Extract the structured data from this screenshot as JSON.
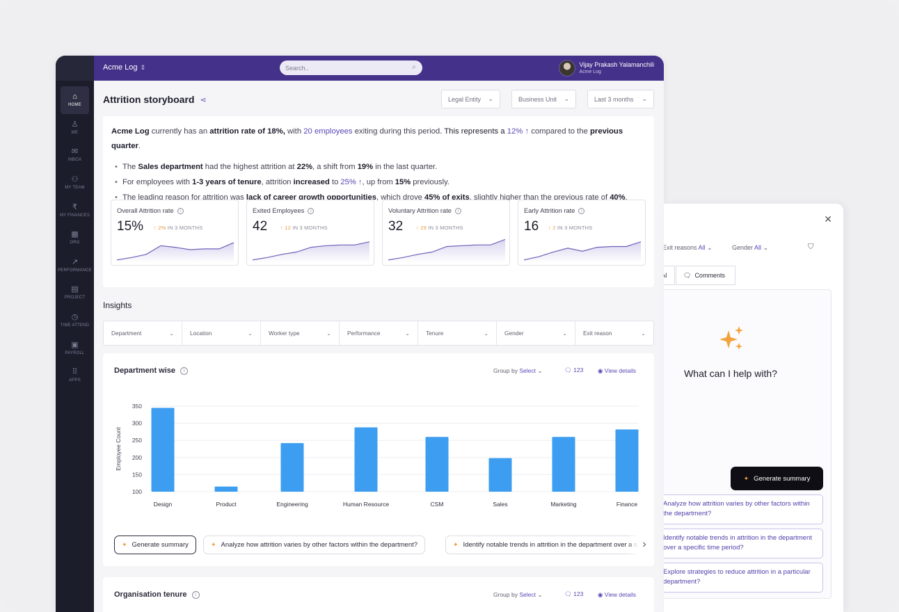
{
  "org": {
    "name": "Acme Log"
  },
  "search": {
    "placeholder": "Search.."
  },
  "user": {
    "name": "Vijay Prakash Yalamanchili",
    "org": "Acme Log"
  },
  "sidebar": {
    "items": [
      {
        "label": "HOME",
        "icon": "home-icon",
        "active": true
      },
      {
        "label": "ME",
        "icon": "user-icon"
      },
      {
        "label": "INBOX",
        "icon": "inbox-icon"
      },
      {
        "label": "MY TEAM",
        "icon": "team-icon"
      },
      {
        "label": "MY FINANCES",
        "icon": "rupee-icon"
      },
      {
        "label": "ORG",
        "icon": "org-icon"
      },
      {
        "label": "PERFORMANCE",
        "icon": "trend-icon"
      },
      {
        "label": "PROJECT",
        "icon": "clipboard-icon"
      },
      {
        "label": "TIME ATTEND",
        "icon": "clock-icon"
      },
      {
        "label": "PAYROLL",
        "icon": "payroll-icon"
      },
      {
        "label": "APPS",
        "icon": "apps-icon"
      }
    ]
  },
  "page": {
    "title": "Attrition storyboard"
  },
  "dropdowns": {
    "legal_entity": "Legal Entity",
    "business_unit": "Business Unit",
    "period": "Last 3 months"
  },
  "summary": {
    "p1": {
      "org": "Acme Log",
      "t1": " currently has an ",
      "rate": "attrition rate of 18%,",
      "t2": " with ",
      "exits": "20 employees",
      "t3": " exiting during this period",
      "t4": ". This represents a ",
      "change": "12% ↑",
      "t5": " compared to the ",
      "prev": "previous quarter",
      "t6": "."
    },
    "b1": {
      "t1": "The ",
      "dept": "Sales department",
      "t2": " had the highest attrition at ",
      "v1": "22%",
      "t3": ", a shift from ",
      "v2": "19%",
      "t4": " in the last quarter."
    },
    "b2": {
      "t1": "For employees with ",
      "tenure": "1-3 years of tenure",
      "t2": ", attrition ",
      "inc": "increased",
      "t3": " to ",
      "v1": "25% ↑",
      "t4": ", up from ",
      "v2": "15%",
      "t5": " previously."
    },
    "b3": {
      "t1": "The leading reason for attrition was ",
      "reason": "lack of career growth opportunities",
      "t2": ", which drove ",
      "v1": "45% of exits",
      "t3": ", slightly higher than the previous rate of ",
      "v2": "40%",
      "t4": "."
    }
  },
  "kpis": [
    {
      "title": "Overall Attrition rate",
      "value": "15%",
      "delta": "↑ 2%",
      "period": "IN 3 MONTHS",
      "trend": [
        2,
        5,
        9,
        20,
        18,
        15,
        16,
        16,
        24
      ]
    },
    {
      "title": "Exited Employees",
      "value": "42",
      "delta": "↑ 12",
      "period": "IN 3 MONTHS",
      "trend": [
        2,
        5,
        9,
        12,
        18,
        20,
        21,
        21,
        25
      ]
    },
    {
      "title": "Voluntary Attrition rate",
      "value": "32",
      "delta": "↑ 29",
      "period": "IN 3 MONTHS",
      "trend": [
        2,
        5,
        9,
        12,
        19,
        20,
        21,
        21,
        28
      ]
    },
    {
      "title": "Early Attrition rate",
      "value": "16",
      "delta": "↑ 2",
      "period": "IN 3 MONTHS",
      "trend": [
        2,
        6,
        12,
        17,
        13,
        18,
        19,
        19,
        25
      ]
    }
  ],
  "insights": {
    "title": "Insights"
  },
  "filters": [
    "Department",
    "Location",
    "Worker type",
    "Performance",
    "Tenure",
    "Gender",
    "Exit reason"
  ],
  "dept_card": {
    "title": "Department wise",
    "group_by": "Group by",
    "group_sel": "Select",
    "count": "123",
    "view_details": "View details"
  },
  "chart_data": {
    "type": "bar",
    "categories": [
      "Design",
      "Product",
      "Engineering",
      "Human Resource",
      "CSM",
      "Sales",
      "Marketing",
      "Finance"
    ],
    "values": [
      345,
      115,
      242,
      288,
      260,
      198,
      260,
      282
    ],
    "ylabel": "Employee Count",
    "yticks": [
      "100",
      "150",
      "200",
      "250",
      "300",
      "350"
    ],
    "ylim": [
      100,
      350
    ],
    "color": "#3d9df0"
  },
  "chips": [
    "Generate summary",
    "Analyze how attrition varies by other factors within the department?",
    "Identify notable trends in attrition in the department over a specific time period?"
  ],
  "tenure_card": {
    "title": "Organisation tenure",
    "group_by": "Group by",
    "group_sel": "Select",
    "count": "123",
    "view_details": "View details"
  },
  "panel": {
    "exit_label": "Exit reasons",
    "exit_val": "All",
    "gender_label": "Gender",
    "gender_val": "All",
    "tab_ai": "AI",
    "tab_comments": "Comments",
    "help": "What can I help with?",
    "generate": "Generate summary",
    "suggestions": [
      "Analyze how attrition varies by other factors within the department?",
      "Identify notable trends in attrition in the department over a specific time period?",
      "Explore strategies to reduce attrition in a particular department?"
    ]
  }
}
